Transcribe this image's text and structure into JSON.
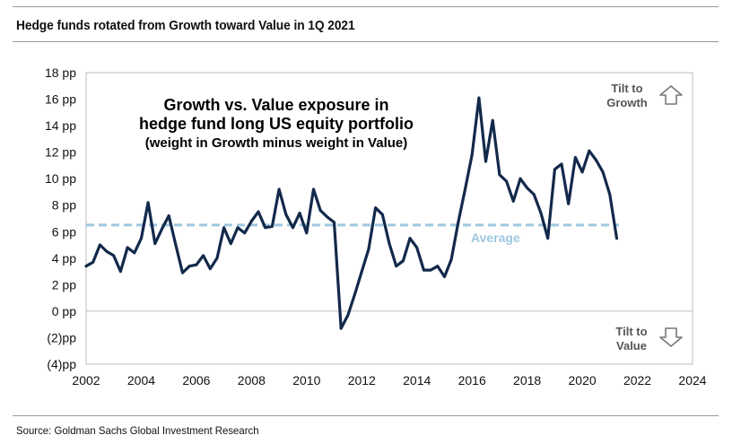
{
  "header": {
    "title": "Hedge funds rotated from Growth toward Value in 1Q 2021"
  },
  "footer": {
    "source": "Source: Goldman Sachs Global Investment Research"
  },
  "chart_data": {
    "type": "line",
    "title": "Growth vs. Value exposure in",
    "title_line2": "hedge fund long US equity portfolio",
    "subtitle": "(weight in Growth minus weight in Value)",
    "xlabel": "",
    "ylabel": "",
    "xlim": [
      2002,
      2024
    ],
    "ylim": [
      -4,
      18
    ],
    "x_ticks": [
      2002,
      2004,
      2006,
      2008,
      2010,
      2012,
      2014,
      2016,
      2018,
      2020,
      2022,
      2024
    ],
    "x_tick_labels": [
      "2002",
      "2004",
      "2006",
      "2008",
      "2010",
      "2012",
      "2014",
      "2016",
      "2018",
      "2020",
      "2022",
      "2024"
    ],
    "y_ticks": [
      18,
      16,
      14,
      12,
      10,
      8,
      6,
      4,
      2,
      0,
      -2,
      -4
    ],
    "y_tick_labels": [
      "18 pp",
      "16 pp",
      "14 pp",
      "12 pp",
      "10 pp",
      "8 pp",
      "6 pp",
      "4 pp",
      "2 pp",
      "0 pp",
      "(2)pp",
      "(4)pp"
    ],
    "grid": false,
    "line_color": "#13294b",
    "average": {
      "value": 6.5,
      "label": "Average",
      "color": "#9ec7df"
    },
    "annotations": {
      "tilt_up_line1": "Tilt to",
      "tilt_up_line2": "Growth",
      "tilt_down_line1": "Tilt to",
      "tilt_down_line2": "Value"
    },
    "series": [
      {
        "name": "Growth minus Value weight (pp)",
        "points": [
          [
            2002.0,
            3.4
          ],
          [
            2002.25,
            3.7
          ],
          [
            2002.5,
            5.0
          ],
          [
            2002.75,
            4.5
          ],
          [
            2003.0,
            4.2
          ],
          [
            2003.25,
            3.0
          ],
          [
            2003.5,
            4.8
          ],
          [
            2003.75,
            4.4
          ],
          [
            2004.0,
            5.5
          ],
          [
            2004.25,
            8.2
          ],
          [
            2004.5,
            5.1
          ],
          [
            2004.75,
            6.2
          ],
          [
            2005.0,
            7.2
          ],
          [
            2005.25,
            5.0
          ],
          [
            2005.5,
            2.9
          ],
          [
            2005.75,
            3.4
          ],
          [
            2006.0,
            3.5
          ],
          [
            2006.25,
            4.2
          ],
          [
            2006.5,
            3.2
          ],
          [
            2006.75,
            4.0
          ],
          [
            2007.0,
            6.3
          ],
          [
            2007.25,
            5.1
          ],
          [
            2007.5,
            6.3
          ],
          [
            2007.75,
            5.9
          ],
          [
            2008.0,
            6.8
          ],
          [
            2008.25,
            7.5
          ],
          [
            2008.5,
            6.3
          ],
          [
            2008.75,
            6.4
          ],
          [
            2009.0,
            9.2
          ],
          [
            2009.25,
            7.3
          ],
          [
            2009.5,
            6.3
          ],
          [
            2009.75,
            7.4
          ],
          [
            2010.0,
            5.9
          ],
          [
            2010.25,
            9.2
          ],
          [
            2010.5,
            7.6
          ],
          [
            2010.75,
            7.1
          ],
          [
            2011.0,
            6.7
          ],
          [
            2011.25,
            -1.3
          ],
          [
            2011.5,
            -0.3
          ],
          [
            2011.75,
            1.3
          ],
          [
            2012.0,
            3.0
          ],
          [
            2012.25,
            4.7
          ],
          [
            2012.5,
            7.8
          ],
          [
            2012.75,
            7.3
          ],
          [
            2013.0,
            5.1
          ],
          [
            2013.25,
            3.4
          ],
          [
            2013.5,
            3.8
          ],
          [
            2013.75,
            5.5
          ],
          [
            2014.0,
            4.8
          ],
          [
            2014.25,
            3.1
          ],
          [
            2014.5,
            3.1
          ],
          [
            2014.75,
            3.4
          ],
          [
            2015.0,
            2.6
          ],
          [
            2015.25,
            3.9
          ],
          [
            2015.5,
            6.7
          ],
          [
            2015.75,
            9.2
          ],
          [
            2016.0,
            11.8
          ],
          [
            2016.25,
            16.1
          ],
          [
            2016.5,
            11.3
          ],
          [
            2016.75,
            14.4
          ],
          [
            2017.0,
            10.3
          ],
          [
            2017.25,
            9.8
          ],
          [
            2017.5,
            8.3
          ],
          [
            2017.75,
            10.0
          ],
          [
            2018.0,
            9.3
          ],
          [
            2018.25,
            8.8
          ],
          [
            2018.5,
            7.4
          ],
          [
            2018.75,
            5.5
          ],
          [
            2019.0,
            10.7
          ],
          [
            2019.25,
            11.1
          ],
          [
            2019.5,
            8.1
          ],
          [
            2019.75,
            11.6
          ],
          [
            2020.0,
            10.5
          ],
          [
            2020.25,
            12.1
          ],
          [
            2020.5,
            11.4
          ],
          [
            2020.75,
            10.5
          ],
          [
            2021.0,
            8.8
          ],
          [
            2021.25,
            5.5
          ]
        ]
      }
    ]
  }
}
